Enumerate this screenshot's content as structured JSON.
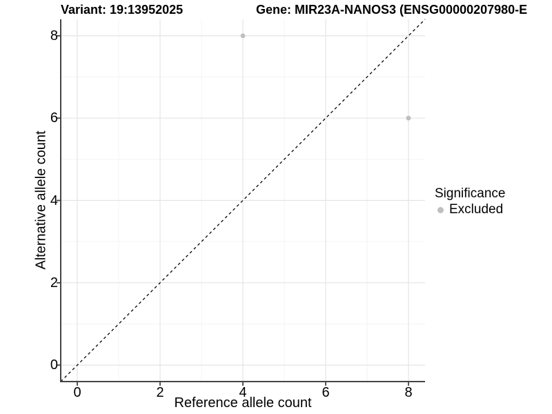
{
  "chart_data": {
    "type": "scatter",
    "title_left": "Variant: 19:13952025",
    "title_right": "Gene: MIR23A-NANOS3 (ENSG00000207980-E",
    "xlabel": "Reference allele count",
    "ylabel": "Alternative allele count",
    "xlim": [
      -0.4,
      8.4
    ],
    "ylim": [
      -0.4,
      8.4
    ],
    "xticks": [
      0,
      2,
      4,
      6,
      8
    ],
    "yticks": [
      0,
      2,
      4,
      6,
      8
    ],
    "minor_xticks": [
      1,
      3,
      5,
      7
    ],
    "minor_yticks": [
      1,
      3,
      5,
      7
    ],
    "grid": true,
    "series": [
      {
        "name": "Excluded",
        "color": "#bebebe",
        "points": [
          {
            "x": 4,
            "y": 8
          },
          {
            "x": 8,
            "y": 6
          }
        ]
      }
    ],
    "reference_line": {
      "meaning": "y = x identity line",
      "style": "dashed",
      "color": "#000000",
      "from": [
        -0.4,
        -0.4
      ],
      "to": [
        8.4,
        8.4
      ]
    },
    "legend": {
      "title": "Significance",
      "position": "right",
      "items": [
        {
          "label": "Excluded",
          "color": "#bebebe"
        }
      ]
    }
  },
  "colors": {
    "background": "#ffffff",
    "grid_major": "#e4e4e4",
    "grid_minor": "#f3f3f3",
    "axis": "#444444",
    "point": "#bebebe",
    "text": "#000000"
  }
}
